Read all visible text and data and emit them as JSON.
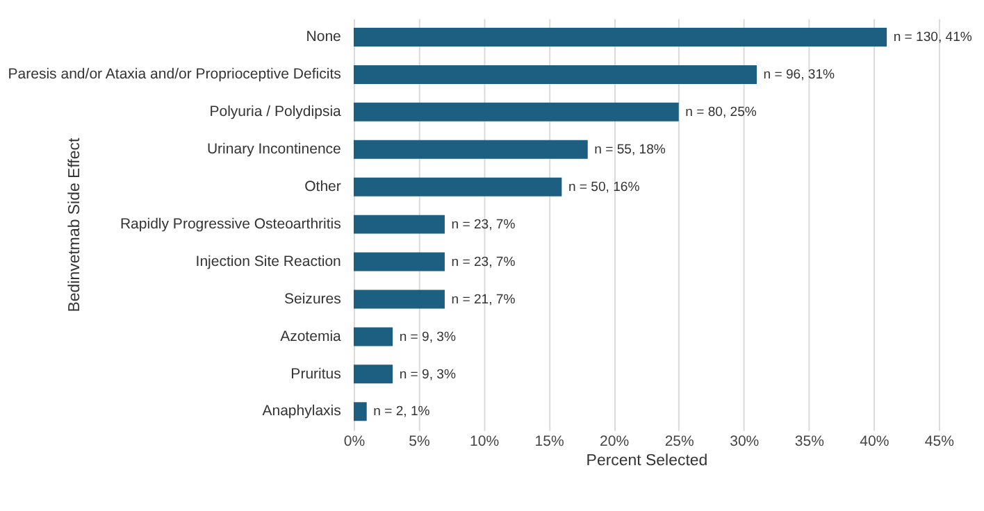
{
  "chart_data": {
    "type": "bar",
    "orientation": "horizontal",
    "ylabel": "Bedinvetmab Side Effect",
    "xlabel": "Percent Selected",
    "categories": [
      "None",
      "Paresis and/or Ataxia and/or Proprioceptive Deficits",
      "Polyuria / Polydipsia",
      "Urinary Incontinence",
      "Other",
      "Rapidly Progressive Osteoarthritis",
      "Injection Site Reaction",
      "Seizures",
      "Azotemia",
      "Pruritus",
      "Anaphylaxis"
    ],
    "values": [
      41,
      31,
      25,
      18,
      16,
      7,
      7,
      7,
      3,
      3,
      1
    ],
    "value_labels": [
      "n = 130, 41%",
      "n = 96, 31%",
      "n = 80, 25%",
      "n = 55, 18%",
      "n = 50, 16%",
      "n = 23, 7%",
      "n = 23, 7%",
      "n = 21, 7%",
      "n = 9, 3%",
      "n = 9, 3%",
      "n = 2, 1%"
    ],
    "color": "#1d5f80",
    "xlim": [
      0,
      45
    ],
    "xticks": [
      {
        "value": 0,
        "label": "0%"
      },
      {
        "value": 5,
        "label": "5%"
      },
      {
        "value": 10,
        "label": "10%"
      },
      {
        "value": 15,
        "label": "15%"
      },
      {
        "value": 20,
        "label": "20%"
      },
      {
        "value": 25,
        "label": "25%"
      },
      {
        "value": 30,
        "label": "30%"
      },
      {
        "value": 35,
        "label": "35%"
      },
      {
        "value": 40,
        "label": "40%"
      },
      {
        "value": 45,
        "label": "45%"
      }
    ],
    "grid": "x"
  }
}
